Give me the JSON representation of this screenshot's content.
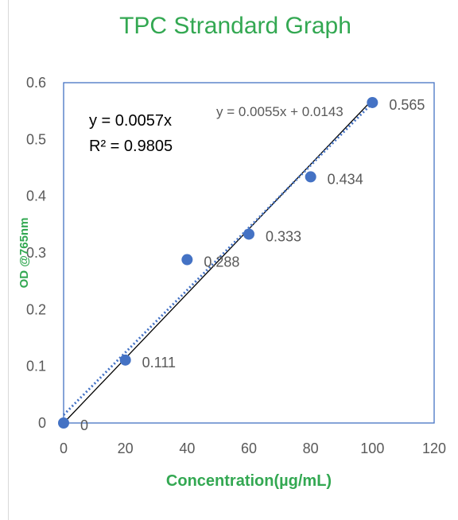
{
  "chart_data": {
    "type": "scatter",
    "title": "TPC Strandard Graph",
    "xlabel": "Concentration(µg/mL)",
    "ylabel": "OD @765nm",
    "xlim": [
      0,
      120
    ],
    "ylim": [
      0,
      0.6
    ],
    "x_ticks": [
      "0",
      "20",
      "40",
      "60",
      "80",
      "100",
      "120"
    ],
    "y_ticks": [
      "0",
      "0.1",
      "0.2",
      "0.3",
      "0.4",
      "0.5",
      "0.6"
    ],
    "series": [
      {
        "x": [
          0,
          20,
          40,
          60,
          80,
          100
        ],
        "y": [
          0,
          0.111,
          0.288,
          0.333,
          0.434,
          0.565
        ],
        "labels": [
          "0",
          "0.111",
          "0.288",
          "0.333",
          "0.434",
          "0.565"
        ],
        "color": "#4472c4"
      }
    ],
    "trendlines": [
      {
        "equation": "y = 0.0057x",
        "r_squared": "R² = 0.9805",
        "slope": 0.0057,
        "intercept": 0,
        "style": "solid",
        "color": "#000000"
      },
      {
        "equation": "y = 0.0055x + 0.0143",
        "slope": 0.0055,
        "intercept": 0.0143,
        "style": "dotted",
        "color": "#4472c4"
      }
    ],
    "grid": false,
    "legend": "none"
  }
}
